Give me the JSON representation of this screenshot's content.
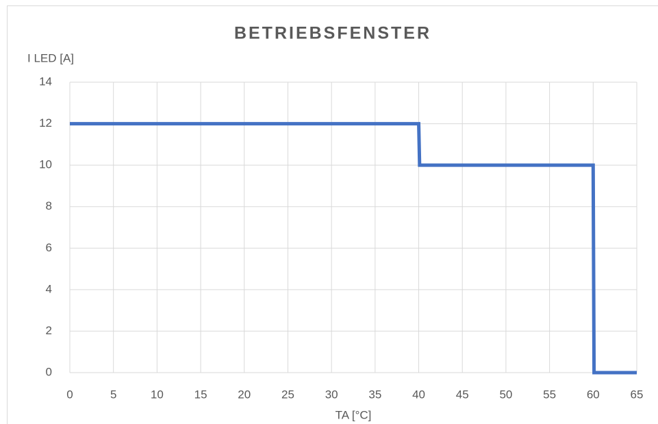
{
  "chart_data": {
    "type": "line",
    "title": "BETRIEBSFENSTER",
    "y_label": "I LED [A]",
    "x_label": "TA [°C]",
    "x": [
      0,
      40,
      40.1,
      60,
      60.1,
      65
    ],
    "series": [
      {
        "name": "I LED",
        "color": "#4472c4",
        "values": [
          12,
          12,
          10,
          10,
          0,
          0
        ]
      }
    ],
    "xlim": [
      0,
      65
    ],
    "xticks": [
      0,
      5,
      10,
      15,
      20,
      25,
      30,
      35,
      40,
      45,
      50,
      55,
      60,
      65
    ],
    "ylim": [
      0,
      14
    ],
    "yticks": [
      0,
      2,
      4,
      6,
      8,
      10,
      12,
      14
    ],
    "grid": true
  }
}
